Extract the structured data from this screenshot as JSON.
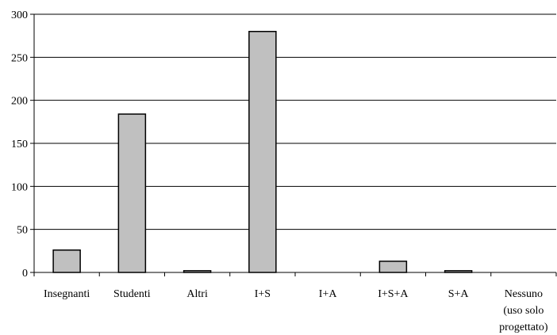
{
  "chart_data": {
    "type": "bar",
    "title": "",
    "xlabel": "",
    "ylabel": "",
    "ylim": [
      0,
      300
    ],
    "yticks": [
      0,
      50,
      100,
      150,
      200,
      250,
      300
    ],
    "grid": true,
    "bar_color": "#c0c0c0",
    "categories": [
      [
        "Insegnanti"
      ],
      [
        "Studenti"
      ],
      [
        "Altri"
      ],
      [
        "I+S"
      ],
      [
        "I+A"
      ],
      [
        "I+S+A"
      ],
      [
        "S+A"
      ],
      [
        "Nessuno",
        "(uso solo",
        "progettato)"
      ]
    ],
    "values": [
      26,
      184,
      2,
      280,
      0,
      13,
      2,
      0
    ]
  }
}
